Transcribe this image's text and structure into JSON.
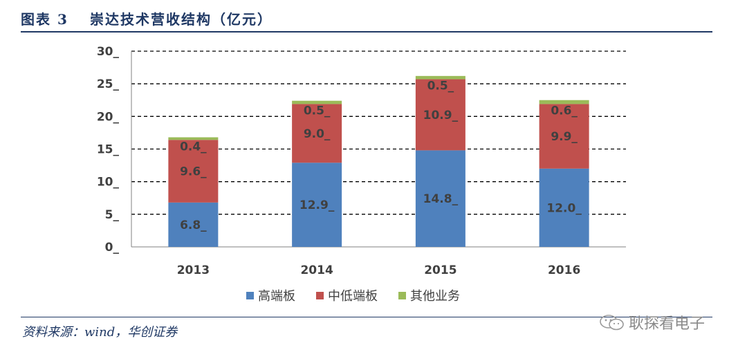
{
  "header": {
    "figure_label": "图表 3",
    "title": "崇达技术营收结构（亿元）"
  },
  "footer": {
    "source": "资料来源：wind，华创证券",
    "watermark": "耿探看电子",
    "watermark_icon": "wechat-icon"
  },
  "colors": {
    "high_end": "#4f81bd",
    "mid_low": "#c0504d",
    "other": "#9bbb59",
    "grid": "#000000",
    "text": "#404040",
    "title": "#1f3864"
  },
  "chart_data": {
    "type": "bar",
    "stacked": true,
    "categories": [
      "2013",
      "2014",
      "2015",
      "2016"
    ],
    "series": [
      {
        "name": "高端板",
        "values": [
          6.8,
          12.9,
          14.8,
          12.0
        ],
        "labels": [
          "6.8_",
          "12.9_",
          "14.8_",
          "12.0_"
        ]
      },
      {
        "name": "中低端板",
        "values": [
          9.6,
          9.0,
          10.9,
          9.9
        ],
        "labels": [
          "9.6_",
          "9.0_",
          "10.9_",
          "9.9_"
        ]
      },
      {
        "name": "其他业务",
        "values": [
          0.4,
          0.5,
          0.5,
          0.6
        ],
        "labels": [
          "0.4_",
          "0.5_",
          "0.5_",
          "0.6_"
        ]
      }
    ],
    "ylim": [
      0,
      30
    ],
    "yticks": [
      0,
      5,
      10,
      15,
      20,
      25,
      30
    ],
    "ytick_labels": [
      "0_",
      "5_",
      "10_",
      "15_",
      "20_",
      "25_",
      "30_"
    ],
    "grid": true,
    "grid_style": "dashed",
    "legend_position": "bottom"
  }
}
